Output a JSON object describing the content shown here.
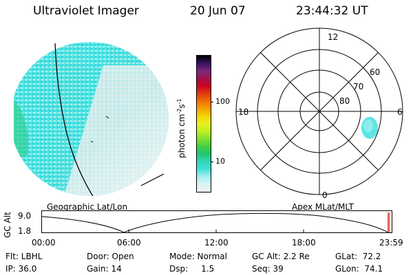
{
  "header": {
    "title": "Ultraviolet Imager",
    "date": "20 Jun 07",
    "time": "23:44:32 UT"
  },
  "colorbar": {
    "label": "photon cm",
    "label_sup1": "-2",
    "label_mid": "s",
    "label_sup2": "-1",
    "ticks": [
      "100",
      "10"
    ],
    "colors": [
      "#000000",
      "#3a1060",
      "#7a2a7a",
      "#a01050",
      "#d00020",
      "#e03a10",
      "#f07000",
      "#f8a000",
      "#f4d400",
      "#e8f020",
      "#c0ee20",
      "#80e030",
      "#40d040",
      "#20c870",
      "#30d8b8",
      "#40e0d8",
      "#a8eeee",
      "#d8f4f4",
      "#eef0f0"
    ]
  },
  "geo_panel": {
    "label": "Geographic Lat/Lon"
  },
  "polar_panel": {
    "label": "Apex MLat/MLT",
    "mlt_labels": [
      "12",
      "18",
      "6",
      "0"
    ],
    "lat_labels": [
      "60",
      "70",
      "80"
    ]
  },
  "timeline": {
    "ylabel": "GC Alt",
    "ytick_top": "9.0",
    "ytick_bottom": "1.8",
    "xticks": [
      "00:00",
      "06:00",
      "12:00",
      "18:00",
      "23:59"
    ],
    "marker_time": "23:44"
  },
  "footer": {
    "flt": "Flt: LBHL",
    "door": "Door: Open",
    "mode": "Mode: Normal",
    "gcalt": "GC Alt: 2.2 Re",
    "glat": "GLat:  72.2",
    "ip": "IP: 36.0",
    "gain": "Gain: 14",
    "dsp": "Dsp:     1.5",
    "seq": "Seq: 39",
    "glon": "GLon:  74.1"
  },
  "colors": {
    "cyan": "#3ee0e0",
    "lightgray": "#e6ecec",
    "green": "#30d080",
    "marker": "#e02020"
  }
}
